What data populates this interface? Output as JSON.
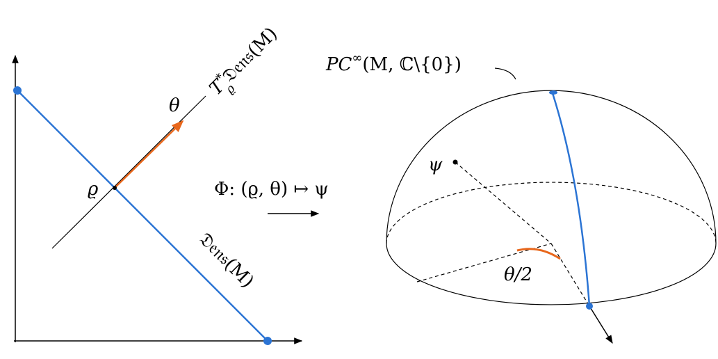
{
  "labels": {
    "cotangent": {
      "base": "T",
      "sup": "*",
      "sub": "ϱ",
      "rest": "𝔇𝔢𝔫𝔰(M)"
    },
    "theta": "θ",
    "rho": "ϱ",
    "map": "Φ: (ϱ, θ) ↦ ψ",
    "dens": "𝔇𝔢𝔫𝔰(M)",
    "pc": {
      "base": "PC",
      "sup": "∞",
      "rest": "(M, ℂ\\{0})"
    },
    "psi": "ψ",
    "half_angle": "θ/2"
  }
}
